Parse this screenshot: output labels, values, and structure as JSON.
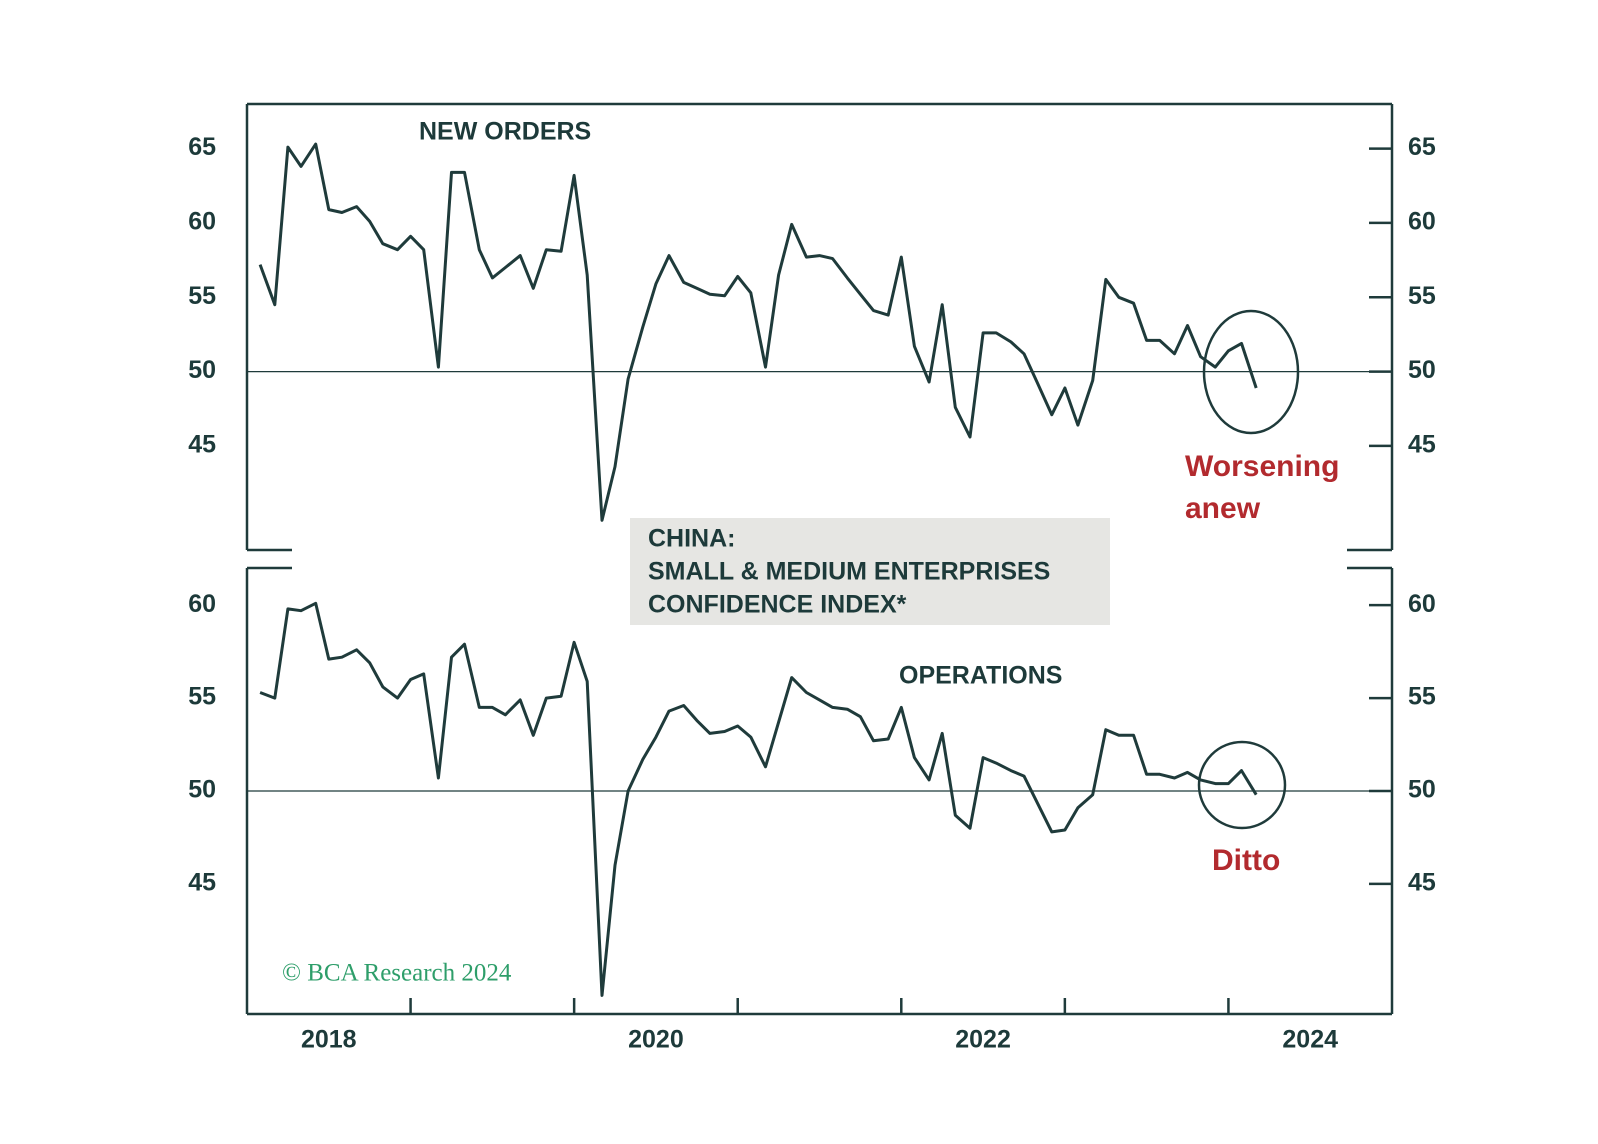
{
  "title": [
    "CHINA:",
    "SMALL & MEDIUM ENTERPRISES",
    "CONFIDENCE INDEX*"
  ],
  "source": "© BCA Research 2024",
  "chart_data": [
    {
      "type": "line",
      "label": "NEW ORDERS",
      "annotation": [
        "Worsening",
        "anew"
      ],
      "ylim": [
        38,
        68
      ],
      "yticks": [
        45,
        50,
        55,
        60,
        65
      ],
      "hline": 50,
      "x": [
        2018.08,
        2018.17,
        2018.25,
        2018.33,
        2018.42,
        2018.5,
        2018.58,
        2018.67,
        2018.75,
        2018.83,
        2018.92,
        2019.0,
        2019.08,
        2019.17,
        2019.25,
        2019.33,
        2019.42,
        2019.5,
        2019.58,
        2019.67,
        2019.75,
        2019.83,
        2019.92,
        2020.0,
        2020.08,
        2020.17,
        2020.25,
        2020.33,
        2020.42,
        2020.5,
        2020.58,
        2020.67,
        2020.75,
        2020.83,
        2020.92,
        2021.0,
        2021.08,
        2021.17,
        2021.25,
        2021.33,
        2021.42,
        2021.5,
        2021.58,
        2021.67,
        2021.75,
        2021.83,
        2021.92,
        2022.0,
        2022.08,
        2022.17,
        2022.25,
        2022.33,
        2022.42,
        2022.5,
        2022.58,
        2022.67,
        2022.75,
        2022.83,
        2022.92,
        2023.0,
        2023.08,
        2023.17,
        2023.25,
        2023.33,
        2023.42,
        2023.5,
        2023.58,
        2023.67,
        2023.75,
        2023.83,
        2023.92,
        2024.0,
        2024.08,
        2024.17
      ],
      "series": [
        {
          "name": "NEW ORDERS",
          "color": "#1f3b3b",
          "values": [
            57.2,
            54.5,
            65.1,
            63.8,
            65.3,
            60.9,
            60.7,
            61.1,
            60.1,
            58.6,
            58.2,
            59.1,
            58.2,
            50.3,
            63.4,
            63.4,
            58.2,
            56.3,
            57.0,
            57.8,
            55.6,
            58.2,
            58.1,
            63.2,
            56.5,
            40.0,
            43.6,
            49.5,
            53.0,
            55.9,
            57.8,
            56.0,
            55.6,
            55.2,
            55.1,
            56.4,
            55.3,
            50.3,
            56.5,
            59.9,
            57.7,
            57.8,
            57.6,
            56.3,
            55.2,
            54.1,
            53.8,
            57.7,
            51.7,
            49.3,
            54.5,
            47.6,
            45.6,
            52.6,
            52.6,
            52.0,
            51.2,
            49.3,
            47.1,
            48.9,
            46.4,
            49.4,
            56.2,
            55.0,
            54.6,
            52.1,
            52.1,
            51.2,
            53.1,
            51.0,
            50.3,
            51.4,
            51.9,
            48.9
          ]
        }
      ]
    },
    {
      "type": "line",
      "label": "OPERATIONS",
      "annotation": [
        "Ditto"
      ],
      "ylim": [
        38,
        62
      ],
      "yticks": [
        45,
        50,
        55,
        60
      ],
      "hline": 50,
      "xlim": [
        2018,
        2025
      ],
      "xticks": [
        {
          "value": 2018.5,
          "label": "2018"
        },
        {
          "value": 2020.5,
          "label": "2020"
        },
        {
          "value": 2022.5,
          "label": "2022"
        },
        {
          "value": 2024.5,
          "label": "2024"
        }
      ],
      "xtick_marks": [
        2019,
        2020,
        2021,
        2022,
        2023,
        2024
      ],
      "x": [
        2018.08,
        2018.17,
        2018.25,
        2018.33,
        2018.42,
        2018.5,
        2018.58,
        2018.67,
        2018.75,
        2018.83,
        2018.92,
        2019.0,
        2019.08,
        2019.17,
        2019.25,
        2019.33,
        2019.42,
        2019.5,
        2019.58,
        2019.67,
        2019.75,
        2019.83,
        2019.92,
        2020.0,
        2020.08,
        2020.17,
        2020.25,
        2020.33,
        2020.42,
        2020.5,
        2020.58,
        2020.67,
        2020.75,
        2020.83,
        2020.92,
        2021.0,
        2021.08,
        2021.17,
        2021.25,
        2021.33,
        2021.42,
        2021.5,
        2021.58,
        2021.67,
        2021.75,
        2021.83,
        2021.92,
        2022.0,
        2022.08,
        2022.17,
        2022.25,
        2022.33,
        2022.42,
        2022.5,
        2022.58,
        2022.67,
        2022.75,
        2022.83,
        2022.92,
        2023.0,
        2023.08,
        2023.17,
        2023.25,
        2023.33,
        2023.42,
        2023.5,
        2023.58,
        2023.67,
        2023.75,
        2023.83,
        2023.92,
        2024.0,
        2024.08,
        2024.17
      ],
      "series": [
        {
          "name": "OPERATIONS",
          "color": "#1f3b3b",
          "values": [
            55.3,
            55.0,
            59.8,
            59.7,
            60.1,
            57.1,
            57.2,
            57.6,
            56.9,
            55.6,
            55.0,
            56.0,
            56.3,
            50.7,
            57.2,
            57.9,
            54.5,
            54.5,
            54.1,
            54.9,
            53.0,
            55.0,
            55.1,
            58.0,
            55.9,
            39.0,
            46.0,
            50.0,
            51.7,
            52.9,
            54.3,
            54.6,
            53.8,
            53.1,
            53.2,
            53.5,
            52.9,
            51.3,
            53.7,
            56.1,
            55.3,
            54.9,
            54.5,
            54.4,
            54.0,
            52.7,
            52.8,
            54.5,
            51.8,
            50.6,
            53.1,
            48.7,
            48.0,
            51.8,
            51.5,
            51.1,
            50.8,
            49.4,
            47.8,
            47.9,
            49.1,
            49.8,
            53.3,
            53.0,
            53.0,
            50.9,
            50.9,
            50.7,
            51.0,
            50.6,
            50.4,
            50.4,
            51.1,
            49.8
          ]
        }
      ]
    }
  ]
}
